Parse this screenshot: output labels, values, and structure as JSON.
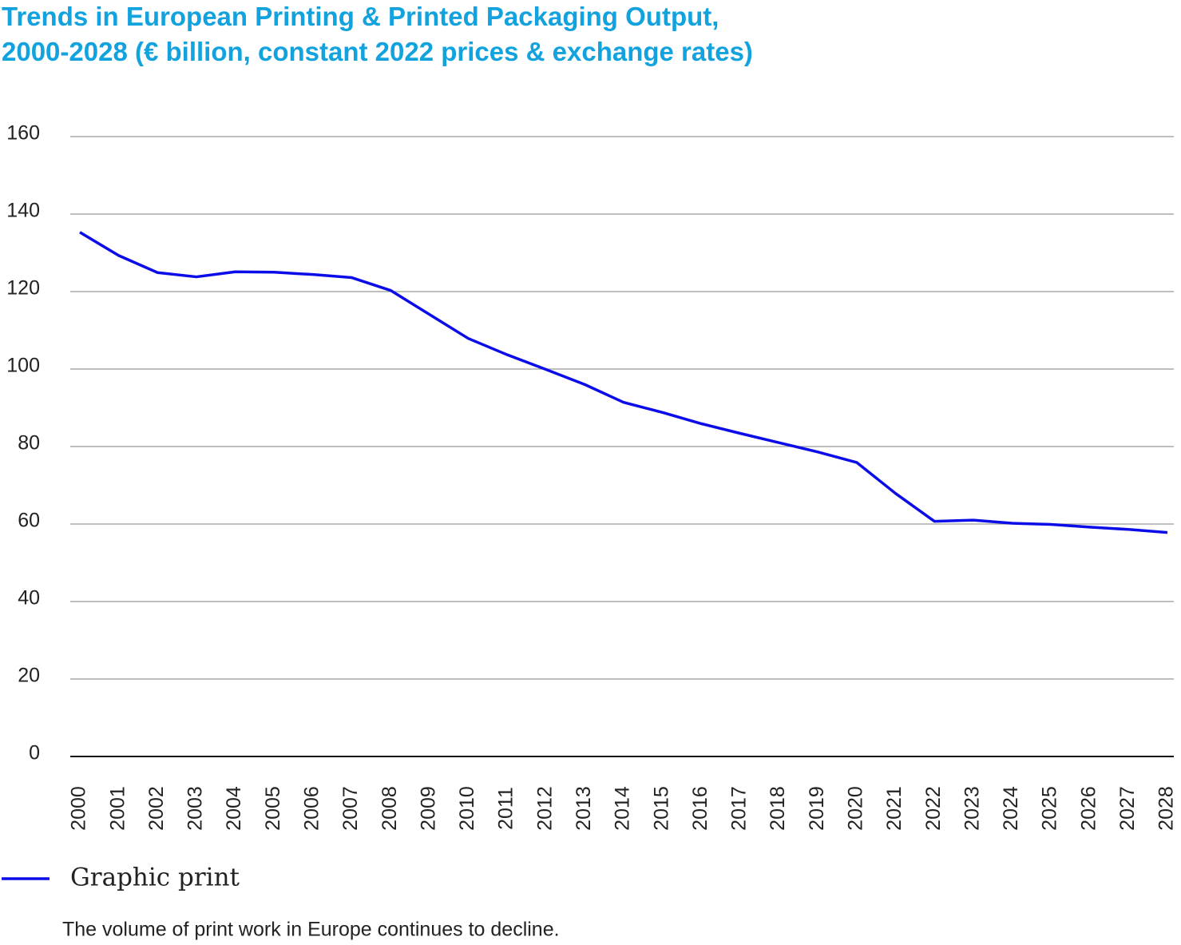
{
  "chart_data": {
    "type": "line",
    "title": [
      "Trends in European Printing & Printed Packaging Output,",
      "2000-2028 (€ billion, constant 2022 prices & exchange rates)"
    ],
    "categories": [
      "2000",
      "2001",
      "2002",
      "2003",
      "2004",
      "2005",
      "2006",
      "2007",
      "2008",
      "2009",
      "2010",
      "2011",
      "2012",
      "2013",
      "2014",
      "2015",
      "2016",
      "2017",
      "2018",
      "2019",
      "2020",
      "2021",
      "2022",
      "2023",
      "2024",
      "2025",
      "2026",
      "2027",
      "2028"
    ],
    "series": [
      {
        "name": "Graphic print",
        "color": "#0c0ce8",
        "values": [
          135.3,
          129.3,
          124.9,
          123.8,
          125.1,
          125.0,
          124.4,
          123.6,
          120.3,
          114.1,
          107.9,
          103.7,
          99.9,
          96.0,
          91.4,
          88.8,
          85.9,
          83.4,
          81.0,
          78.6,
          75.9,
          67.9,
          60.7,
          61.0,
          60.2,
          59.9,
          59.2,
          58.6,
          57.8
        ]
      }
    ],
    "ylim": [
      0,
      160
    ],
    "yticks": [
      0,
      20,
      40,
      60,
      80,
      100,
      120,
      140,
      160
    ],
    "grid": true,
    "caption": "The volume of print work in Europe continues to decline."
  }
}
